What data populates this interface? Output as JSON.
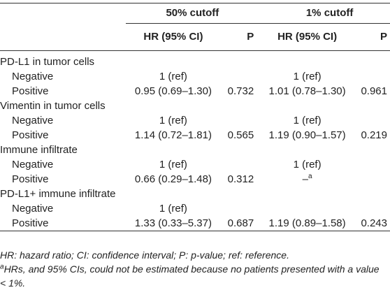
{
  "header": {
    "group1": "50% cutoff",
    "group2": "1% cutoff",
    "hr_label": "HR (95% CI)",
    "p_label": "P"
  },
  "sections": [
    {
      "title": "PD-L1 in tumor cells",
      "rows": [
        {
          "label": "Negative",
          "hr50": "1 (ref)",
          "p50": "",
          "hr1": "1 (ref)",
          "p1": ""
        },
        {
          "label": "Positive",
          "hr50": "0.95 (0.69–1.30)",
          "p50": "0.732",
          "hr1": "1.01 (0.78–1.30)",
          "p1": "0.961"
        }
      ]
    },
    {
      "title": "Vimentin in tumor cells",
      "rows": [
        {
          "label": "Negative",
          "hr50": "1 (ref)",
          "p50": "",
          "hr1": "1 (ref)",
          "p1": ""
        },
        {
          "label": "Positive",
          "hr50": "1.14 (0.72–1.81)",
          "p50": "0.565",
          "hr1": "1.19 (0.90–1.57)",
          "p1": "0.219"
        }
      ]
    },
    {
      "title": "Immune infiltrate",
      "rows": [
        {
          "label": "Negative",
          "hr50": "1 (ref)",
          "p50": "",
          "hr1": "1 (ref)",
          "p1": ""
        },
        {
          "label": "Positive",
          "hr50": "0.66 (0.29–1.48)",
          "p50": "0.312",
          "hr1": "–",
          "hr1_sup": "a",
          "p1": ""
        }
      ]
    },
    {
      "title": "PD-L1+ immune infiltrate",
      "rows": [
        {
          "label": "Negative",
          "hr50": "1 (ref)",
          "p50": "",
          "hr1": "",
          "p1": ""
        },
        {
          "label": "Positive",
          "hr50": "1.33 (0.33–5.37)",
          "p50": "0.687",
          "hr1": "1.19 (0.89–1.58)",
          "p1": "0.243"
        }
      ]
    }
  ],
  "notes": {
    "abbrev": "HR: hazard ratio; CI: confidence interval; P: p-value; ref: reference.",
    "footnote_mark": "a",
    "footnote_text": "HRs, and 95% CIs, could not be estimated because no patients presented with a value < 1%."
  }
}
